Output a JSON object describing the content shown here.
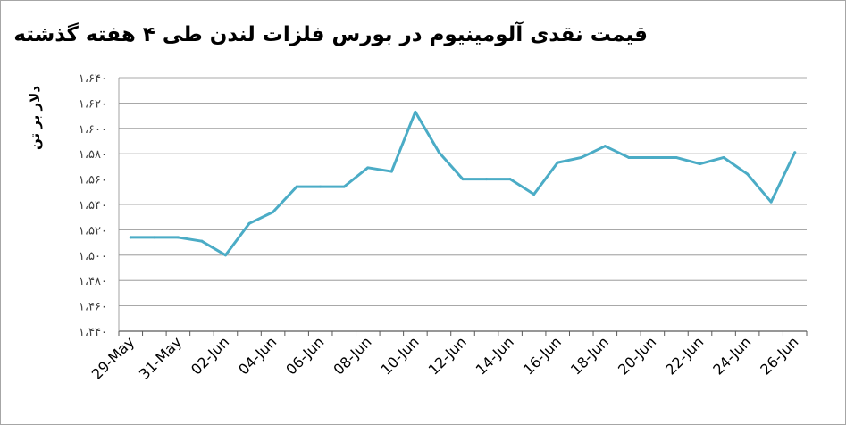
{
  "chart_data": {
    "type": "line",
    "title": "قیمت نقدی آلومینیوم در بورس فلزات لندن طی ۴ هفته گذشته",
    "ylabel": "دلار بر تن",
    "xlabel": "",
    "ylim": [
      1440,
      1640
    ],
    "ytick_step": 20,
    "ytick_labels": [
      "۱،۶۴۰",
      "۱،۶۲۰",
      "۱،۶۰۰",
      "۱،۵۸۰",
      "۱،۵۶۰",
      "۱،۵۴۰",
      "۱،۵۲۰",
      "۱،۵۰۰",
      "۱،۴۸۰",
      "۱،۴۶۰",
      "۱،۴۴۰"
    ],
    "xtick_labels": [
      "29-May",
      "31-May",
      "02-Jun",
      "04-Jun",
      "06-Jun",
      "08-Jun",
      "10-Jun",
      "12-Jun",
      "14-Jun",
      "16-Jun",
      "18-Jun",
      "20-Jun",
      "22-Jun",
      "24-Jun",
      "26-Jun"
    ],
    "grid": true,
    "legend": "none",
    "line_color": "#4bacc6",
    "x": [
      "29-May",
      "30-May",
      "31-May",
      "01-Jun",
      "02-Jun",
      "03-Jun",
      "04-Jun",
      "05-Jun",
      "06-Jun",
      "07-Jun",
      "08-Jun",
      "09-Jun",
      "10-Jun",
      "11-Jun",
      "12-Jun",
      "13-Jun",
      "14-Jun",
      "15-Jun",
      "16-Jun",
      "17-Jun",
      "18-Jun",
      "19-Jun",
      "20-Jun",
      "21-Jun",
      "22-Jun",
      "23-Jun",
      "24-Jun",
      "25-Jun",
      "26-Jun"
    ],
    "series": [
      {
        "values": [
          1514,
          1514,
          1514,
          1511,
          1500,
          1525,
          1534,
          1554,
          1554,
          1554,
          1569,
          1566,
          1613,
          1581,
          1560,
          1560,
          1560,
          1548,
          1573,
          1577,
          1586,
          1577,
          1577,
          1577,
          1572,
          1577,
          1564,
          1542,
          1581
        ]
      }
    ]
  }
}
